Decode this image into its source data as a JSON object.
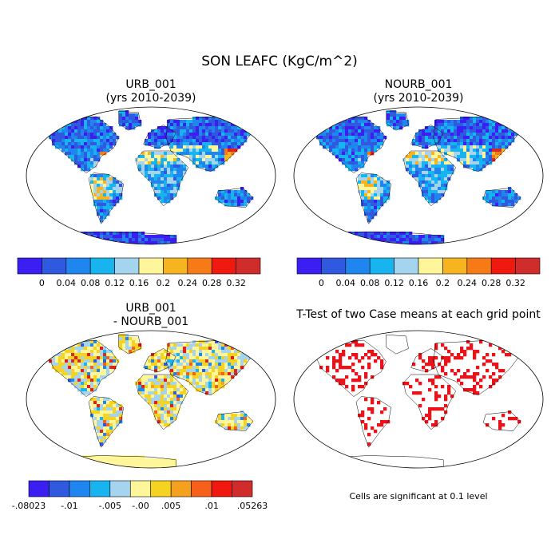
{
  "figure": {
    "title": "SON LEAFC (KgC/m^2)",
    "note": "Cells are significant at 0.1 level"
  },
  "chart_data": [
    {
      "type": "heatmap",
      "title": "URB_001",
      "subtitle": "(yrs 2010-2039)",
      "colorbar": {
        "labels": [
          "0",
          "0.04",
          "0.08",
          "0.12",
          "0.16",
          "0.2",
          "0.24",
          "0.28",
          "0.32"
        ],
        "colors": [
          "#3b1ff2",
          "#2f59df",
          "#1f86f0",
          "#18b4f0",
          "#a4d4ee",
          "#fff59b",
          "#f6b420",
          "#f67a16",
          "#f0190f",
          "#d02c2c"
        ]
      }
    },
    {
      "type": "heatmap",
      "title": "NOURB_001",
      "subtitle": "(yrs 2010-2039)",
      "colorbar": {
        "labels": [
          "0",
          "0.04",
          "0.08",
          "0.12",
          "0.16",
          "0.2",
          "0.24",
          "0.28",
          "0.32"
        ],
        "colors": [
          "#3b1ff2",
          "#2f59df",
          "#1f86f0",
          "#18b4f0",
          "#a4d4ee",
          "#fff59b",
          "#f6b420",
          "#f67a16",
          "#f0190f",
          "#d02c2c"
        ]
      }
    },
    {
      "type": "heatmap",
      "title": "URB_001",
      "subtitle": "- NOURB_001",
      "colorbar": {
        "labels": [
          "-.08023",
          "-.01",
          "-.005",
          "-.00",
          ".005",
          ".01",
          ".05263"
        ],
        "colors": [
          "#3b1ff2",
          "#2f59df",
          "#1f86f0",
          "#18b4f0",
          "#a4d4ee",
          "#fff59b",
          "#f6d320",
          "#f6a020",
          "#f6601a",
          "#f0190f",
          "#d02c2c"
        ]
      }
    },
    {
      "type": "heatmap",
      "title": "T-Test of two Case means at each grid point",
      "significance_color": "#e8141b"
    }
  ]
}
